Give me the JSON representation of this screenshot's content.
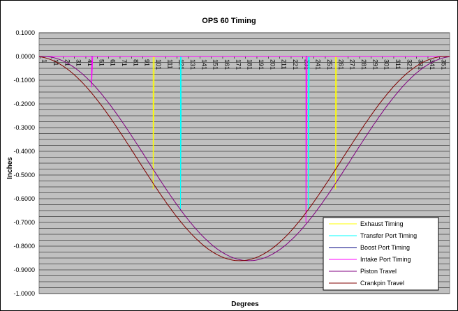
{
  "chart_data": {
    "type": "line",
    "title": "OPS 60 Timing",
    "xlabel": "Degrees",
    "ylabel": "Inches",
    "ylim": [
      -1.0,
      0.1
    ],
    "xlim": [
      0,
      360
    ],
    "y_ticks": [
      "0.1000",
      "0.0000",
      "-0.1000",
      "-0.2000",
      "-0.3000",
      "-0.4000",
      "-0.5000",
      "-0.6000",
      "-0.7000",
      "-0.8000",
      "-0.9000",
      "-1.0000"
    ],
    "y_tick_values": [
      0.1,
      0.0,
      -0.1,
      -0.2,
      -0.3,
      -0.4,
      -0.5,
      -0.6,
      -0.7,
      -0.8,
      -0.9,
      -1.0
    ],
    "x_ticks": [
      "1",
      "11",
      "21",
      "31",
      "41",
      "51",
      "61",
      "71",
      "81",
      "91",
      "101",
      "111",
      "121",
      "131",
      "141",
      "151",
      "161",
      "171",
      "181",
      "191",
      "201",
      "211",
      "221",
      "231",
      "241",
      "251",
      "261",
      "271",
      "281",
      "291",
      "301",
      "311",
      "321",
      "331",
      "341",
      "351"
    ],
    "grid": true,
    "plot_background": "#c0c0c0",
    "legend_position": "bottom-right",
    "stroke": 0.8615,
    "series": [
      {
        "name": "Exhaust Timing",
        "color": "#ffff00",
        "points": [
          [
            0,
            0
          ],
          [
            100,
            0
          ],
          [
            100,
            -0.56
          ],
          [
            101,
            0
          ],
          [
            260,
            0
          ],
          [
            260,
            -0.56
          ],
          [
            261,
            0
          ],
          [
            360,
            0
          ]
        ]
      },
      {
        "name": "Transfer Port Timing",
        "color": "#00ffff",
        "points": [
          [
            0,
            0
          ],
          [
            124,
            0
          ],
          [
            124,
            -0.645
          ],
          [
            125,
            0
          ],
          [
            236,
            0
          ],
          [
            236,
            -0.645
          ],
          [
            237,
            0
          ],
          [
            360,
            0
          ]
        ]
      },
      {
        "name": "Boost Port Timing",
        "color": "#000080",
        "points": [
          [
            0,
            0
          ],
          [
            360,
            0
          ]
        ]
      },
      {
        "name": "Intake Port Timing",
        "color": "#ff00ff",
        "points": [
          [
            0,
            0
          ],
          [
            46,
            0
          ],
          [
            46,
            -0.13
          ],
          [
            47,
            0
          ],
          [
            234,
            0
          ],
          [
            234,
            -0.7
          ],
          [
            235,
            0
          ],
          [
            360,
            0
          ]
        ]
      },
      {
        "name": "Piston Travel",
        "color": "#800080",
        "function": "piston",
        "phase": -4
      },
      {
        "name": "Crankpin Travel",
        "color": "#800000",
        "function": "crankpin",
        "phase": 4
      }
    ]
  }
}
